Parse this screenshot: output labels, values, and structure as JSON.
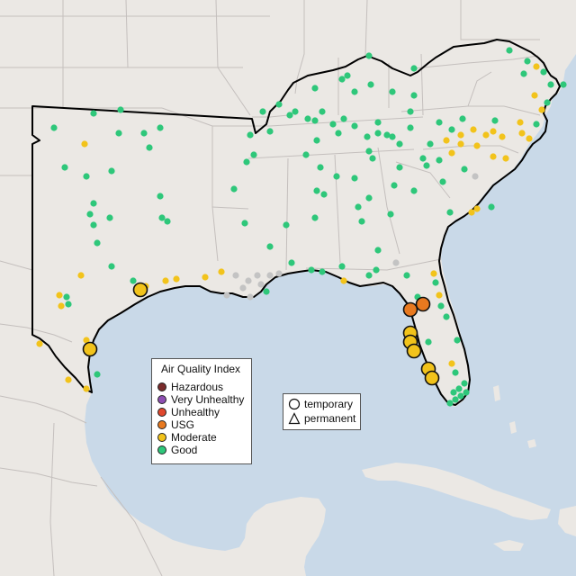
{
  "legend": {
    "title": "Air Quality Index",
    "categories": [
      {
        "label": "Hazardous",
        "color": "#7a2b2b"
      },
      {
        "label": "Very Unhealthy",
        "color": "#8e4fb3"
      },
      {
        "label": "Unhealthy",
        "color": "#e0482e"
      },
      {
        "label": "USG",
        "color": "#e8791f"
      },
      {
        "label": "Moderate",
        "color": "#f2c31b"
      },
      {
        "label": "Good",
        "color": "#2ec77a"
      }
    ]
  },
  "type_legend": {
    "temporary": "temporary",
    "permanent": "permanent"
  },
  "colors": {
    "water": "#c9d9e8",
    "land": "#ebe8e4",
    "border": "#c4bfbd",
    "region_outline": "#000000",
    "no_data": "#c3c3c3"
  }
}
